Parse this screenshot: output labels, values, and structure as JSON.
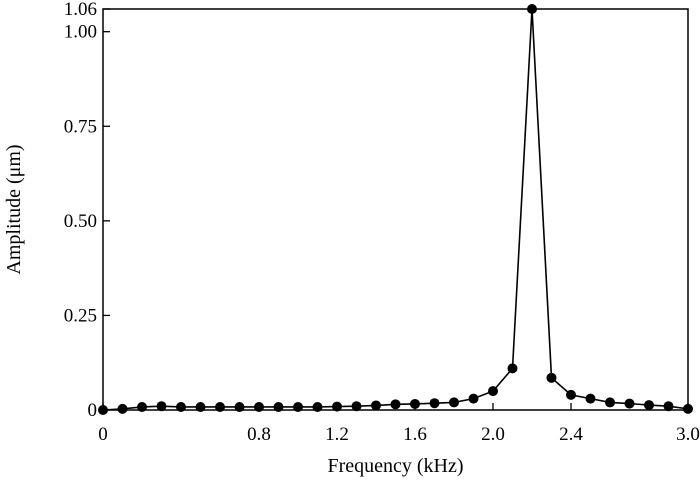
{
  "chart_data": {
    "type": "line",
    "title": "",
    "xlabel": "Frequency (kHz)",
    "ylabel": "Amplitude (μm)",
    "xlim": [
      0,
      3.0
    ],
    "ylim": [
      0,
      1.06
    ],
    "x_ticks": [
      "0",
      "0.8",
      "1.2",
      "1.6",
      "2.0",
      "2.4",
      "3.0"
    ],
    "x_tick_values": [
      0,
      0.8,
      1.2,
      1.6,
      2.0,
      2.4,
      3.0
    ],
    "y_ticks": [
      "0",
      "0.25",
      "0.50",
      "0.75",
      "1.00",
      "1.06"
    ],
    "y_tick_values": [
      0,
      0.25,
      0.5,
      0.75,
      1.0,
      1.06
    ],
    "grid": false,
    "legend": "none",
    "series": [
      {
        "color": "#000000",
        "marker": "circle",
        "points": [
          {
            "x": 0.0,
            "y": 0.0
          },
          {
            "x": 0.1,
            "y": 0.003
          },
          {
            "x": 0.2,
            "y": 0.008
          },
          {
            "x": 0.3,
            "y": 0.01
          },
          {
            "x": 0.4,
            "y": 0.008
          },
          {
            "x": 0.5,
            "y": 0.008
          },
          {
            "x": 0.6,
            "y": 0.008
          },
          {
            "x": 0.7,
            "y": 0.008
          },
          {
            "x": 0.8,
            "y": 0.008
          },
          {
            "x": 0.9,
            "y": 0.008
          },
          {
            "x": 1.0,
            "y": 0.008
          },
          {
            "x": 1.1,
            "y": 0.008
          },
          {
            "x": 1.2,
            "y": 0.009
          },
          {
            "x": 1.3,
            "y": 0.01
          },
          {
            "x": 1.4,
            "y": 0.012
          },
          {
            "x": 1.5,
            "y": 0.015
          },
          {
            "x": 1.6,
            "y": 0.016
          },
          {
            "x": 1.7,
            "y": 0.018
          },
          {
            "x": 1.8,
            "y": 0.02
          },
          {
            "x": 1.9,
            "y": 0.03
          },
          {
            "x": 2.0,
            "y": 0.05
          },
          {
            "x": 2.1,
            "y": 0.11
          },
          {
            "x": 2.2,
            "y": 1.06
          },
          {
            "x": 2.3,
            "y": 0.085
          },
          {
            "x": 2.4,
            "y": 0.04
          },
          {
            "x": 2.5,
            "y": 0.03
          },
          {
            "x": 2.6,
            "y": 0.02
          },
          {
            "x": 2.7,
            "y": 0.017
          },
          {
            "x": 2.8,
            "y": 0.013
          },
          {
            "x": 2.9,
            "y": 0.01
          },
          {
            "x": 3.0,
            "y": 0.003
          }
        ]
      }
    ]
  }
}
